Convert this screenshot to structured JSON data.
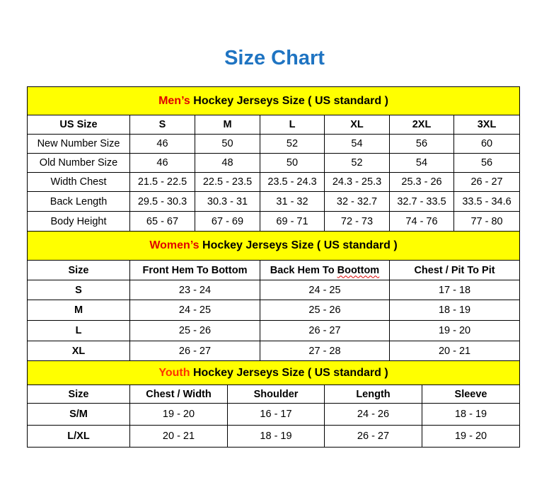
{
  "title": "Size Chart",
  "colors": {
    "title": "#1f74c2",
    "header_bg": "#ffff00",
    "mens_accent": "#e00000",
    "womens_accent": "#e00000",
    "youth_accent": "#ff3300"
  },
  "mens": {
    "header_accent": "Men’s",
    "header_rest": " Hockey Jerseys Size ( US standard )",
    "columns": [
      "US Size",
      "S",
      "M",
      "L",
      "XL",
      "2XL",
      "3XL"
    ],
    "rows": [
      [
        "New Number Size",
        "46",
        "50",
        "52",
        "54",
        "56",
        "60"
      ],
      [
        "Old Number Size",
        "46",
        "48",
        "50",
        "52",
        "54",
        "56"
      ],
      [
        "Width Chest",
        "21.5 - 22.5",
        "22.5 - 23.5",
        "23.5 - 24.3",
        "24.3 - 25.3",
        "25.3 - 26",
        "26 - 27"
      ],
      [
        "Back Length",
        "29.5 - 30.3",
        "30.3 - 31",
        "31 - 32",
        "32 - 32.7",
        "32.7 - 33.5",
        "33.5 - 34.6"
      ],
      [
        "Body Height",
        "65 - 67",
        "67 - 69",
        "69 - 71",
        "72 - 73",
        "74 - 76",
        "77 - 80"
      ]
    ]
  },
  "womens": {
    "header_accent": "Women’s",
    "header_rest": " Hockey Jerseys Size ( US standard )",
    "columns": [
      "Size",
      "Front Hem To Bottom",
      "Back Hem To Boottom",
      "Chest / Pit To Pit"
    ],
    "rows": [
      [
        "S",
        "23 - 24",
        "24 - 25",
        "17 - 18"
      ],
      [
        "M",
        "24 - 25",
        "25 - 26",
        "18 - 19"
      ],
      [
        "L",
        "25 - 26",
        "26 - 27",
        "19 - 20"
      ],
      [
        "XL",
        "26 - 27",
        "27 - 28",
        "20 - 21"
      ]
    ]
  },
  "youth": {
    "header_accent": "Youth",
    "header_rest": " Hockey Jerseys Size ( US standard )",
    "columns": [
      "Size",
      "Chest / Width",
      "Shoulder",
      "Length",
      "Sleeve"
    ],
    "rows": [
      [
        "S/M",
        "19 - 20",
        "16 - 17",
        "24 - 26",
        "18 - 19"
      ],
      [
        "L/XL",
        "20 - 21",
        "18 - 19",
        "26 - 27",
        "19 - 20"
      ]
    ]
  }
}
